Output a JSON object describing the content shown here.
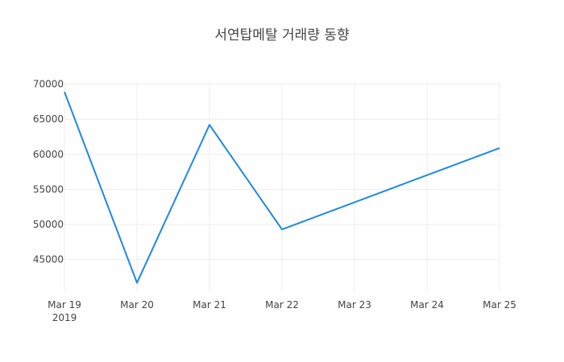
{
  "chart_data": {
    "type": "line",
    "title": "서연탑메탈 거래량 동향",
    "xlabel": "",
    "ylabel": "",
    "x": [
      "2019-03-19",
      "2019-03-20",
      "2019-03-21",
      "2019-03-22",
      "2019-03-25"
    ],
    "x_tick_labels": [
      "Mar 19",
      "Mar 20",
      "Mar 21",
      "Mar 22",
      "Mar 23",
      "Mar 24",
      "Mar 25"
    ],
    "x_tick_sublabel": "2019",
    "y_tick_labels": [
      "45000",
      "50000",
      "55000",
      "60000",
      "65000",
      "70000"
    ],
    "xlim": [
      "2019-03-19",
      "2019-03-25"
    ],
    "ylim": [
      40500,
      70300
    ],
    "grid": true,
    "legend": "none",
    "series": [
      {
        "values": [
          68900,
          41700,
          64200,
          49300,
          60900
        ],
        "color": "#1f88e5"
      }
    ]
  }
}
